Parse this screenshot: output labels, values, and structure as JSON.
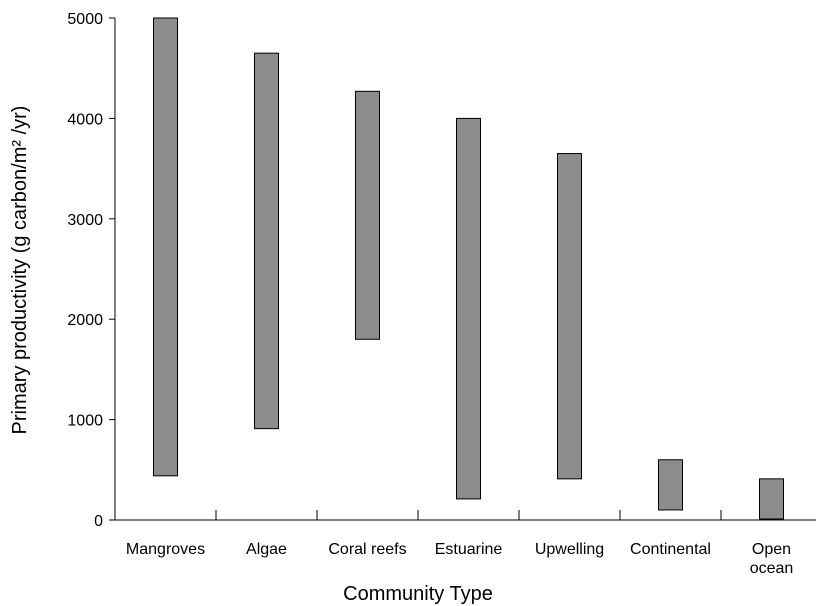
{
  "chart_data": {
    "type": "bar",
    "xlabel": "Community Type",
    "ylabel": "Primary productivity (g carbon/m² /yr)",
    "ylim": [
      0,
      5000
    ],
    "yticks": [
      "0",
      "1000",
      "2000",
      "3000",
      "4000",
      "5000"
    ],
    "grid": false,
    "categories": [
      [
        "Mangroves"
      ],
      [
        "Algae"
      ],
      [
        "Coral reefs"
      ],
      [
        "Estuarine"
      ],
      [
        "Upwelling"
      ],
      [
        "Continental"
      ],
      [
        "Open",
        "ocean"
      ]
    ],
    "ranges": [
      [
        440,
        5000
      ],
      [
        910,
        4650
      ],
      [
        1800,
        4270
      ],
      [
        210,
        4000
      ],
      [
        410,
        3650
      ],
      [
        100,
        600
      ],
      [
        10,
        410
      ]
    ],
    "bar_color": "#8c8c8c"
  }
}
